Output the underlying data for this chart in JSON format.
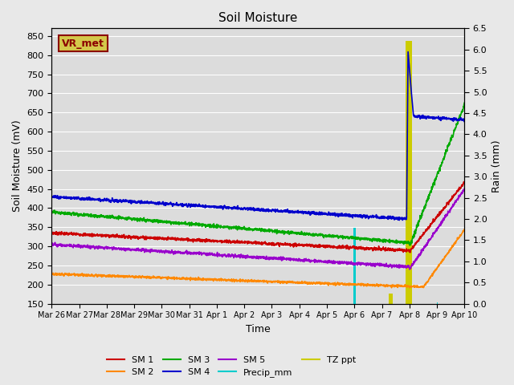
{
  "title": "Soil Moisture",
  "xlabel": "Time",
  "ylabel_left": "Soil Moisture (mV)",
  "ylabel_right": "Rain (mm)",
  "ylim_left": [
    150,
    870
  ],
  "ylim_right": [
    0.0,
    6.5
  ],
  "yticks_left": [
    150,
    200,
    250,
    300,
    350,
    400,
    450,
    500,
    550,
    600,
    650,
    700,
    750,
    800,
    850
  ],
  "yticks_right": [
    0.0,
    0.5,
    1.0,
    1.5,
    2.0,
    2.5,
    3.0,
    3.5,
    4.0,
    4.5,
    5.0,
    5.5,
    6.0,
    6.5
  ],
  "fig_bg_color": "#e8e8e8",
  "plot_bg_color": "#dcdcdc",
  "annotation_text": "VR_met",
  "annotation_color": "#8b0000",
  "annotation_bg": "#d4c84a",
  "colors": {
    "SM1": "#cc0000",
    "SM2": "#ff8800",
    "SM3": "#00aa00",
    "SM4": "#0000cc",
    "SM5": "#9900cc",
    "Precip_mm": "#00cccc",
    "TZ_ppt": "#cccc00"
  },
  "x_labels": [
    "Mar 26",
    "Mar 27",
    "Mar 28",
    "Mar 29",
    "Mar 30",
    "Mar 31",
    "Apr 1",
    "Apr 2",
    "Apr 3",
    "Apr 4",
    "Apr 5",
    "Apr 6",
    "Apr 7",
    "Apr 8",
    "Apr 9",
    "Apr 10"
  ],
  "grid_color": "#ffffff",
  "linewidth": 1.2
}
